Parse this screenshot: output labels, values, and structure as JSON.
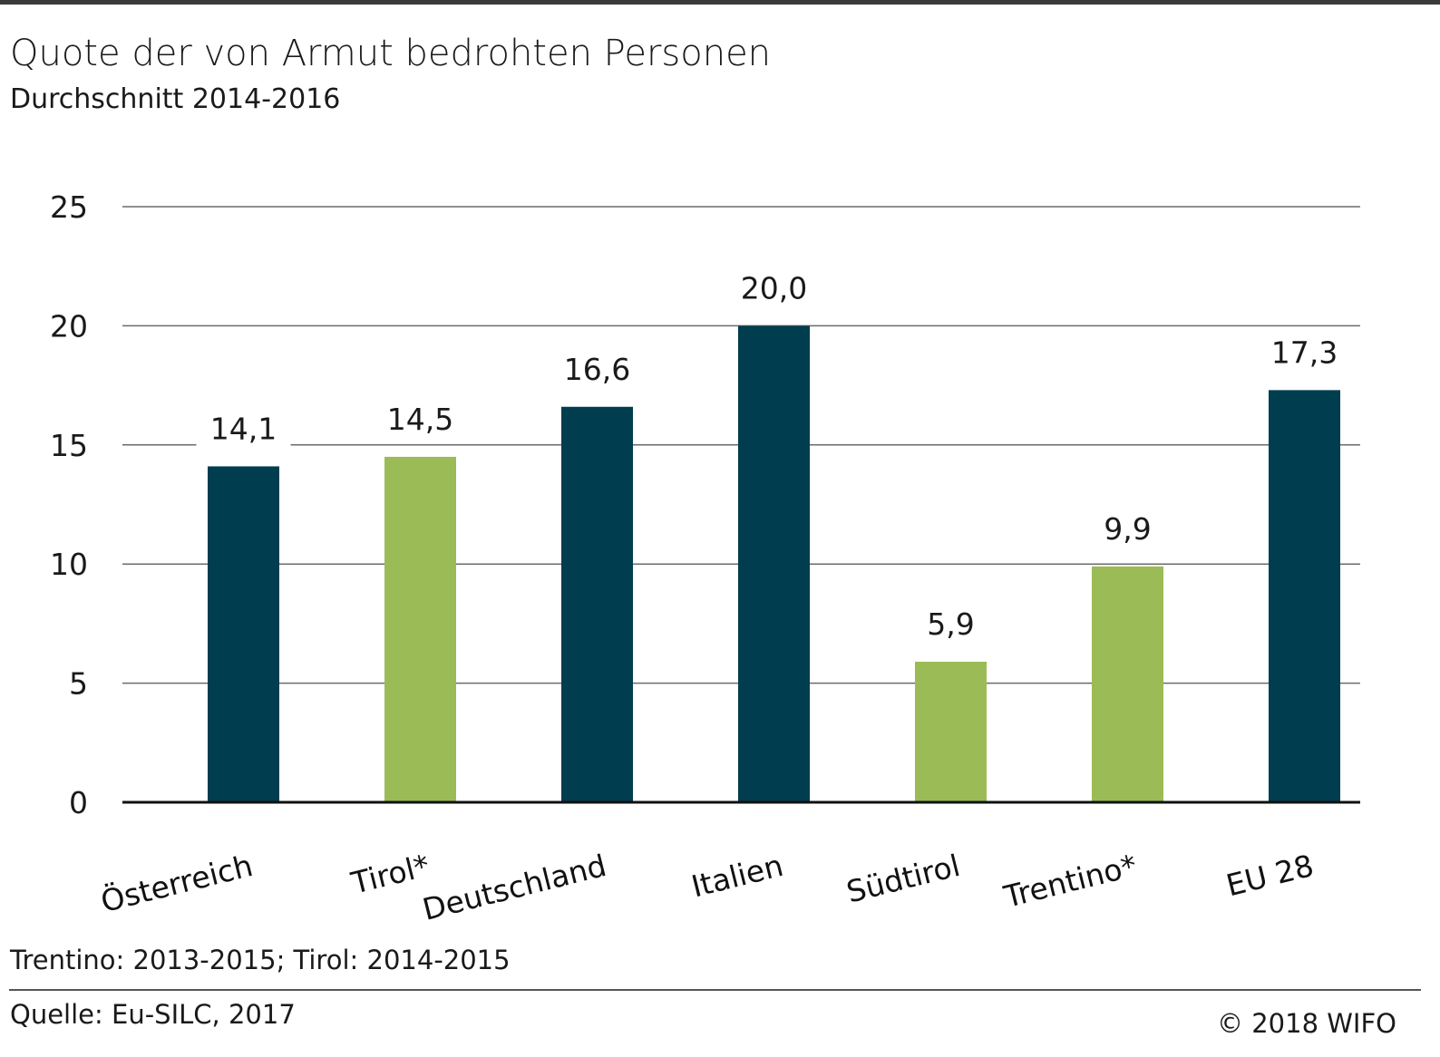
{
  "title": "Quote der von Armut bedrohten Personen",
  "subtitle": "Durchschnitt 2014-2016",
  "note": "Trentino: 2013-2015; Tirol: 2014-2015",
  "source": "Quelle: Eu-SILC, 2017",
  "copyright": "© 2018 WIFO",
  "colors": {
    "national": "#003d4f",
    "regional": "#9bbb57"
  },
  "chart_data": {
    "type": "bar",
    "categories": [
      "Österreich",
      "Tirol*",
      "Deutschland",
      "Italien",
      "Südtirol",
      "Trentino*",
      "EU 28"
    ],
    "values": [
      14.1,
      14.5,
      16.6,
      20.0,
      5.9,
      9.9,
      17.3
    ],
    "value_labels": [
      "14,1",
      "14,5",
      "16,6",
      "20,0",
      "5,9",
      "9,9",
      "17,3"
    ],
    "bar_colors": [
      "#003d4f",
      "#9bbb57",
      "#003d4f",
      "#003d4f",
      "#9bbb57",
      "#9bbb57",
      "#003d4f"
    ],
    "ylim": [
      0,
      25
    ],
    "yticks": [
      0,
      5,
      10,
      15,
      20,
      25
    ],
    "ytick_labels": [
      "0",
      "5",
      "10",
      "15",
      "20",
      "25"
    ],
    "grid": true,
    "legend": "none"
  }
}
